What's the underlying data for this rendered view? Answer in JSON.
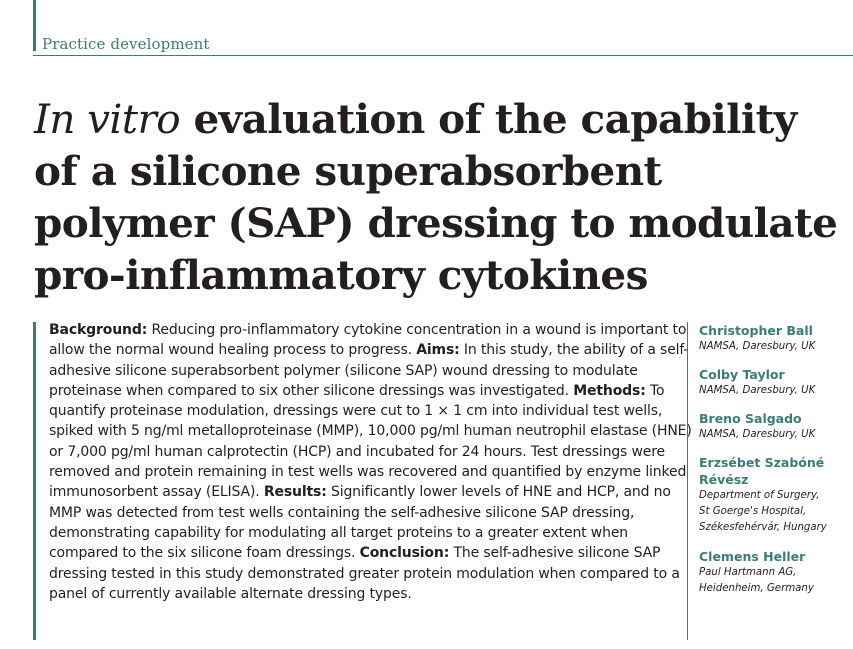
{
  "section": {
    "label": "Practice development"
  },
  "title": {
    "italic_part": "In vitro",
    "rest": " evaluation of the capability of a silicone superabsorbent polymer (SAP) dressing to modulate pro-inflammatory cytokines"
  },
  "abstract": {
    "background_heading": "Background:",
    "background_text": " Reducing pro-inflammatory cytokine concentration in a wound is important to allow the normal wound healing process to progress. ",
    "aims_heading": "Aims:",
    "aims_text": " In this study, the ability of a self-adhesive silicone superabsorbent polymer (silicone SAP) wound dressing to modulate proteinase when compared to six other silicone dressings was investigated. ",
    "methods_heading": "Methods:",
    "methods_text": " To quantify proteinase modulation, dressings were cut to 1 × 1 cm into individual test wells, spiked with 5 ng/ml metalloproteinase (MMP), 10,000 pg/ml human neutrophil elastase (HNE) or 7,000 pg/ml human calprotectin (HCP) and incubated for 24 hours. Test dressings were removed and protein remaining in test wells was recovered and quantified by enzyme linked immunosorbent assay (ELISA). ",
    "results_heading": "Results:",
    "results_text": " Significantly lower levels of HNE and HCP, and no MMP was detected from test wells containing the self-adhesive silicone SAP dressing, demonstrating capability for modulating all target proteins to a greater extent when compared to the six silicone foam dressings. ",
    "conclusion_heading": "Conclusion:",
    "conclusion_text": " The self-adhesive silicone SAP dressing tested in this study demonstrated greater protein modulation when compared to a panel of currently available alternate dressing types."
  },
  "authors": [
    {
      "name": "Christopher Ball",
      "affiliation": [
        "NAMSA, Daresbury, UK"
      ]
    },
    {
      "name": "Colby Taylor",
      "affiliation": [
        "NAMSA, Daresbury, UK"
      ]
    },
    {
      "name": "Breno Salgado",
      "affiliation": [
        "NAMSA, Daresbury, UK"
      ]
    },
    {
      "name_lines": [
        "Erzsébet Szabóné",
        "Révész"
      ],
      "affiliation": [
        "Department of Surgery,",
        "St Goerge's Hospital,",
        "Székesfehérvár, Hungary"
      ]
    },
    {
      "name": "Clemens Heller",
      "affiliation": [
        "Paul Hartmann AG,",
        "Heidenheim, Germany"
      ]
    }
  ],
  "colors": {
    "accent": "#3a7d73",
    "text": "#231f20"
  }
}
